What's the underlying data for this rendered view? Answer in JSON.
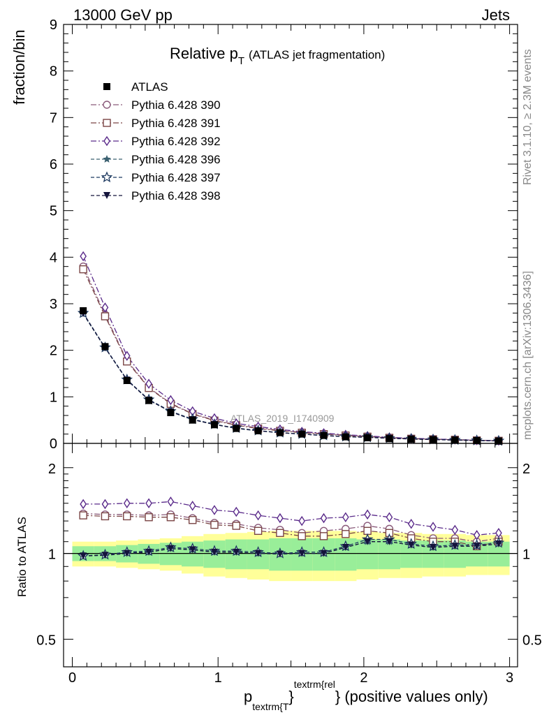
{
  "header": {
    "left": "13000 GeV pp",
    "right": "Jets"
  },
  "side_text": {
    "top": "Rivet 3.1.10, ≥ 2.3M events",
    "bottom": "mcplots.cern.ch [arXiv:1306.3436]"
  },
  "chart_data": {
    "type": "line",
    "title_main": "Relative p",
    "title_sub": "T",
    "title_paren": "(ATLAS jet fragmentation)",
    "watermark": "ATLAS_2019_I1740909",
    "ylabel_top": "fraction/bin",
    "ylabel_bottom": "Ratio to ATLAS",
    "xlabel": {
      "p": "p",
      "sub": "textrm{T",
      "brace": "}",
      "sup": "textrm{rel",
      "rest": "} (positive values only)"
    },
    "xlim": [
      -0.05,
      3.0
    ],
    "ylim_top": [
      0,
      9
    ],
    "ylim_bottom": [
      0.4,
      2.3
    ],
    "x_ticks": [
      "0",
      "1",
      "2",
      "3"
    ],
    "x_tick_values": [
      0,
      1,
      2,
      3
    ],
    "y_ticks_top": [
      "0",
      "1",
      "2",
      "3",
      "4",
      "5",
      "6",
      "7",
      "8",
      "9"
    ],
    "y_ticks_bottom": [
      "0.5",
      "1",
      "2"
    ],
    "y_tick_values_bottom": [
      0.5,
      1,
      2
    ],
    "x": [
      0.075,
      0.225,
      0.375,
      0.525,
      0.675,
      0.825,
      0.975,
      1.125,
      1.275,
      1.425,
      1.575,
      1.725,
      1.875,
      2.025,
      2.175,
      2.325,
      2.475,
      2.625,
      2.775,
      2.925
    ],
    "data": {
      "name": "ATLAS",
      "values": [
        2.85,
        2.08,
        1.35,
        0.92,
        0.66,
        0.5,
        0.4,
        0.32,
        0.27,
        0.23,
        0.2,
        0.17,
        0.14,
        0.12,
        0.1,
        0.09,
        0.08,
        0.07,
        0.06,
        0.05
      ]
    },
    "series": [
      {
        "name": "Pythia 6.428 390",
        "color": "#8a5a7a",
        "marker": "circle-open",
        "dash": "8,3,2,3",
        "values": [
          3.8,
          2.76,
          1.78,
          1.2,
          0.86,
          0.64,
          0.5,
          0.4,
          0.33,
          0.28,
          0.235,
          0.21,
          0.175,
          0.15,
          0.125,
          0.105,
          0.09,
          0.08,
          0.067,
          0.058
        ]
      },
      {
        "name": "Pythia 6.428 391",
        "color": "#7a4545",
        "marker": "square-open",
        "dash": "8,3,2,3",
        "values": [
          3.74,
          2.73,
          1.76,
          1.19,
          0.85,
          0.63,
          0.49,
          0.39,
          0.32,
          0.27,
          0.23,
          0.2,
          0.17,
          0.145,
          0.12,
          0.1,
          0.088,
          0.078,
          0.064,
          0.056
        ]
      },
      {
        "name": "Pythia 6.428 392",
        "color": "#5a2a8a",
        "marker": "diamond-open",
        "dash": "8,3,2,3",
        "values": [
          4.02,
          2.92,
          1.88,
          1.28,
          0.93,
          0.69,
          0.54,
          0.43,
          0.36,
          0.3,
          0.25,
          0.22,
          0.185,
          0.16,
          0.13,
          0.11,
          0.095,
          0.083,
          0.068,
          0.059
        ]
      },
      {
        "name": "Pythia 6.428 396",
        "color": "#3a6070",
        "marker": "star-filled",
        "dash": "5,3",
        "values": [
          2.78,
          2.05,
          1.36,
          0.93,
          0.68,
          0.51,
          0.41,
          0.32,
          0.27,
          0.23,
          0.2,
          0.17,
          0.145,
          0.13,
          0.11,
          0.095,
          0.082,
          0.072,
          0.062,
          0.054
        ]
      },
      {
        "name": "Pythia 6.428 397",
        "color": "#1e3a60",
        "marker": "star-open",
        "dash": "5,3",
        "values": [
          2.8,
          2.06,
          1.37,
          0.94,
          0.69,
          0.52,
          0.41,
          0.33,
          0.275,
          0.23,
          0.2,
          0.17,
          0.145,
          0.13,
          0.11,
          0.096,
          0.083,
          0.073,
          0.063,
          0.054
        ]
      },
      {
        "name": "Pythia 6.428 398",
        "color": "#14143c",
        "marker": "triangle-down-filled",
        "dash": "5,3",
        "values": [
          2.79,
          2.05,
          1.36,
          0.93,
          0.68,
          0.51,
          0.405,
          0.325,
          0.272,
          0.228,
          0.2,
          0.168,
          0.143,
          0.129,
          0.109,
          0.094,
          0.081,
          0.071,
          0.061,
          0.053
        ]
      }
    ],
    "ratio_series": [
      [
        1.38,
        1.37,
        1.37,
        1.36,
        1.37,
        1.33,
        1.28,
        1.27,
        1.23,
        1.21,
        1.18,
        1.2,
        1.22,
        1.25,
        1.22,
        1.16,
        1.13,
        1.13,
        1.1,
        1.13
      ],
      [
        1.36,
        1.35,
        1.35,
        1.34,
        1.34,
        1.31,
        1.26,
        1.25,
        1.2,
        1.18,
        1.15,
        1.15,
        1.17,
        1.2,
        1.18,
        1.13,
        1.1,
        1.1,
        1.06,
        1.1
      ],
      [
        1.49,
        1.49,
        1.5,
        1.5,
        1.52,
        1.47,
        1.42,
        1.4,
        1.36,
        1.33,
        1.3,
        1.33,
        1.34,
        1.37,
        1.34,
        1.27,
        1.24,
        1.21,
        1.16,
        1.18
      ],
      [
        0.98,
        0.99,
        1.01,
        1.01,
        1.04,
        1.03,
        1.01,
        1.01,
        1.0,
        1.0,
        1.0,
        1.0,
        1.05,
        1.1,
        1.1,
        1.07,
        1.05,
        1.06,
        1.06,
        1.08
      ],
      [
        0.98,
        0.99,
        1.01,
        1.02,
        1.05,
        1.04,
        1.02,
        1.02,
        1.01,
        1.0,
        1.01,
        1.01,
        1.06,
        1.12,
        1.12,
        1.08,
        1.06,
        1.07,
        1.07,
        1.09
      ],
      [
        0.98,
        0.985,
        1.0,
        1.01,
        1.04,
        1.03,
        1.01,
        1.01,
        1.0,
        0.995,
        1.0,
        1.0,
        1.05,
        1.1,
        1.1,
        1.07,
        1.05,
        1.06,
        1.06,
        1.08
      ]
    ],
    "band_inner": [
      1.06,
      1.06,
      1.07,
      1.08,
      1.09,
      1.1,
      1.11,
      1.12,
      1.12,
      1.13,
      1.13,
      1.13,
      1.13,
      1.12,
      1.12,
      1.11,
      1.11,
      1.11,
      1.1,
      1.1
    ],
    "band_outer": [
      1.1,
      1.1,
      1.11,
      1.12,
      1.13,
      1.15,
      1.17,
      1.18,
      1.19,
      1.2,
      1.2,
      1.2,
      1.2,
      1.19,
      1.18,
      1.18,
      1.17,
      1.17,
      1.16,
      1.16
    ],
    "band_colors": {
      "inner": "#99ee99",
      "outer": "#ffff99"
    }
  }
}
